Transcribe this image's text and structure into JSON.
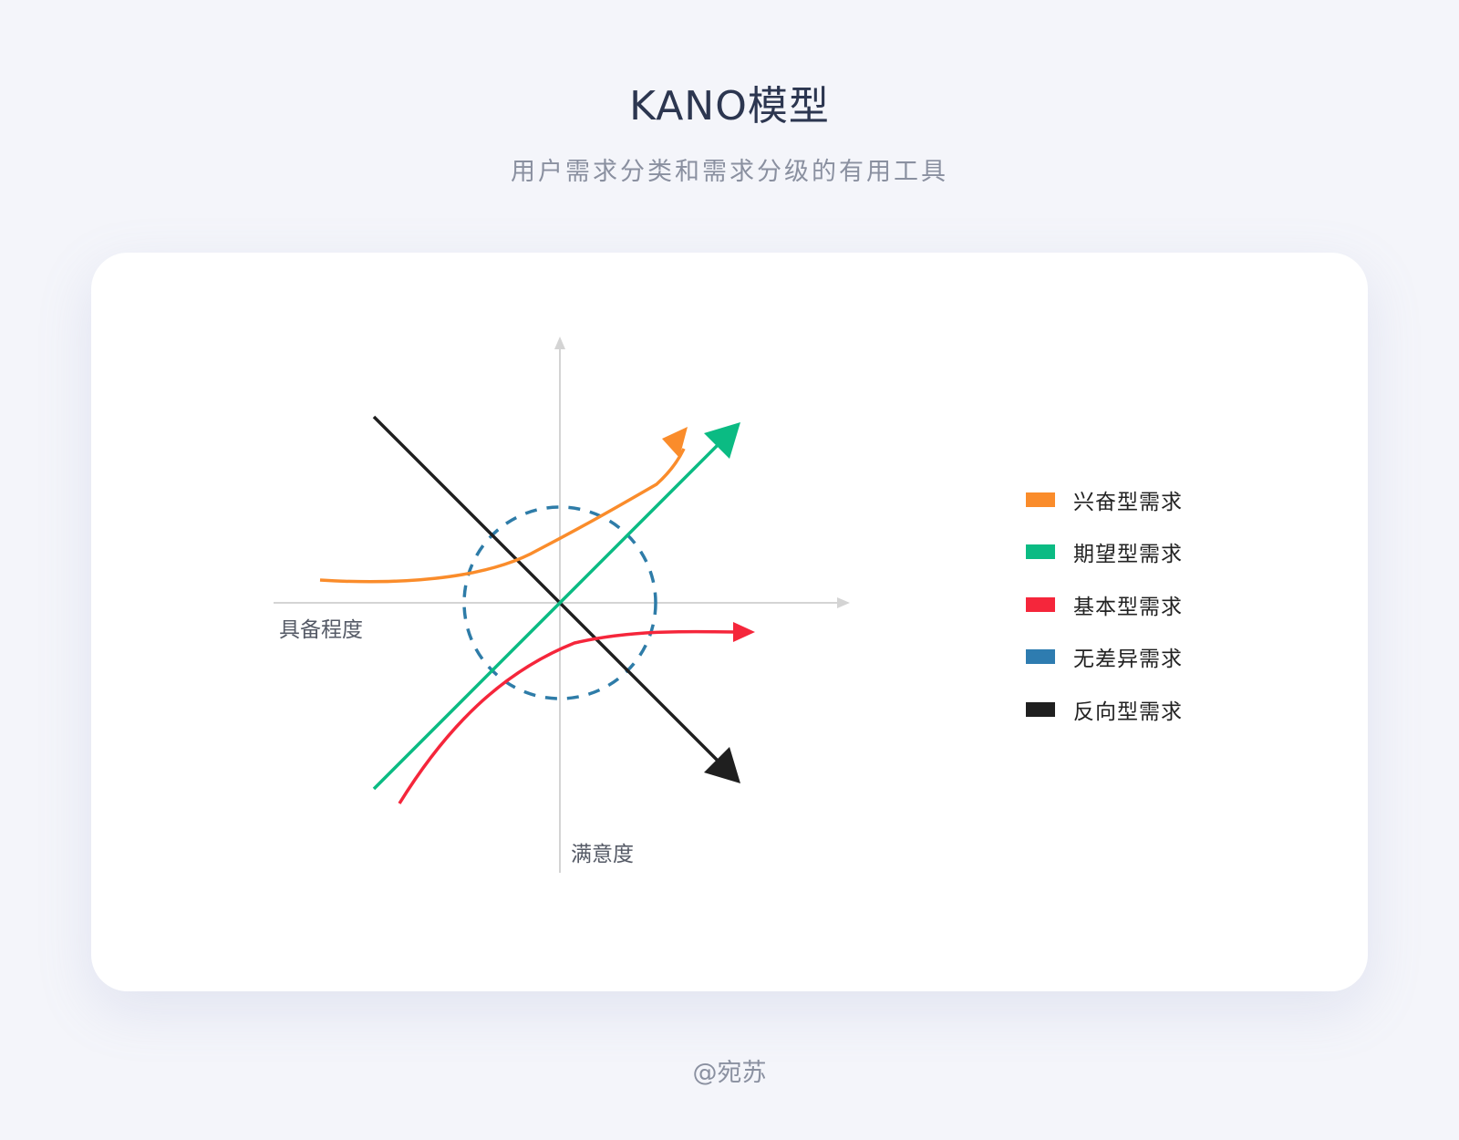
{
  "header": {
    "title": "KANO模型",
    "subtitle": "用户需求分类和需求分级的有用工具"
  },
  "diagram": {
    "x_axis_label": "具备程度",
    "y_axis_label": "满意度",
    "axis_color": "#d4d4d4",
    "neutral_circle_color": "#2e7ca8"
  },
  "legend": {
    "items": [
      {
        "label": "兴奋型需求",
        "color": "#fa8c2b"
      },
      {
        "label": "期望型需求",
        "color": "#0bbb83"
      },
      {
        "label": "基本型需求",
        "color": "#f5263b"
      },
      {
        "label": "无差异需求",
        "color": "#2e7cb0"
      },
      {
        "label": "反向型需求",
        "color": "#1f1f1f"
      }
    ]
  },
  "footer": {
    "credit": "@宛苏"
  }
}
